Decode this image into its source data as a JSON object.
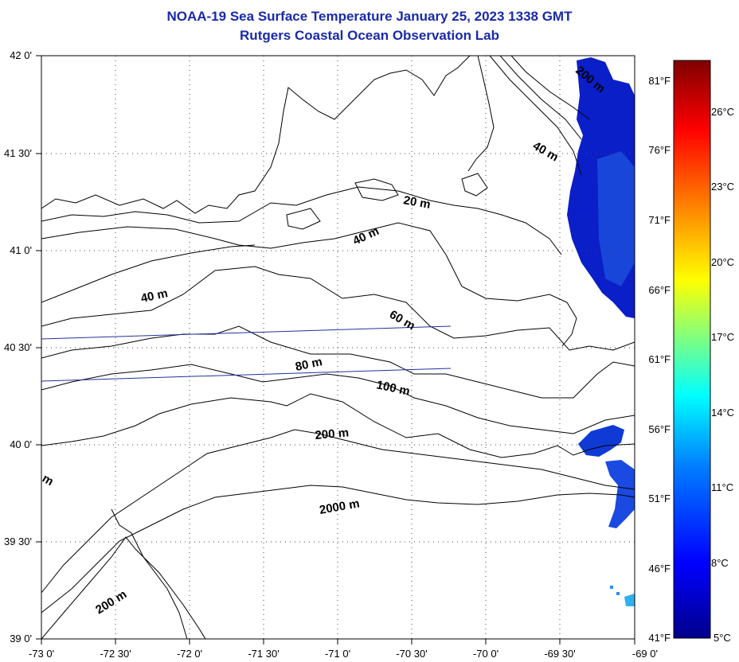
{
  "title": "NOAA-19 Sea Surface Temperature January 25, 2023 1338 GMT",
  "subtitle": "Rutgers Coastal Ocean Observation Lab",
  "lat_labels": [
    "42 0'",
    "41 30'",
    "41 0'",
    "40 30'",
    "40 0'",
    "39 30'",
    "39 0'"
  ],
  "lon_labels": [
    "-73 0'",
    "-72 30'",
    "-72 0'",
    "-71 30'",
    "-71 0'",
    "-70 30'",
    "-70 0'",
    "-69 30'",
    "-69 0'"
  ],
  "colorbar": {
    "fahrenheit": [
      "81°F",
      "76°F",
      "71°F",
      "66°F",
      "61°F",
      "56°F",
      "51°F",
      "46°F",
      "41°F"
    ],
    "celsius": [
      "26°C",
      "23°C",
      "20°C",
      "17°C",
      "14°C",
      "11°C",
      "8°C",
      "5°C"
    ],
    "colors": [
      "#00008a",
      "#0000ff",
      "#0080ff",
      "#00ffff",
      "#80ff80",
      "#ffff00",
      "#ff8000",
      "#ff0000",
      "#800000"
    ]
  },
  "depth_labels": {
    "d20": "20 m",
    "d40a": "40 m",
    "d40b": "40 m",
    "d40c": "40 m",
    "d60": "60 m",
    "d80": "80 m",
    "d100": "100 m",
    "d200a": "200 m",
    "d200b": "200 m",
    "d200c": "200 m",
    "d2000": "2000 m",
    "dm": "m"
  },
  "colors": {
    "title": "#1a2aa8",
    "sst_dark": "#0a1fc8",
    "sst_light": "#2f8cf0"
  }
}
